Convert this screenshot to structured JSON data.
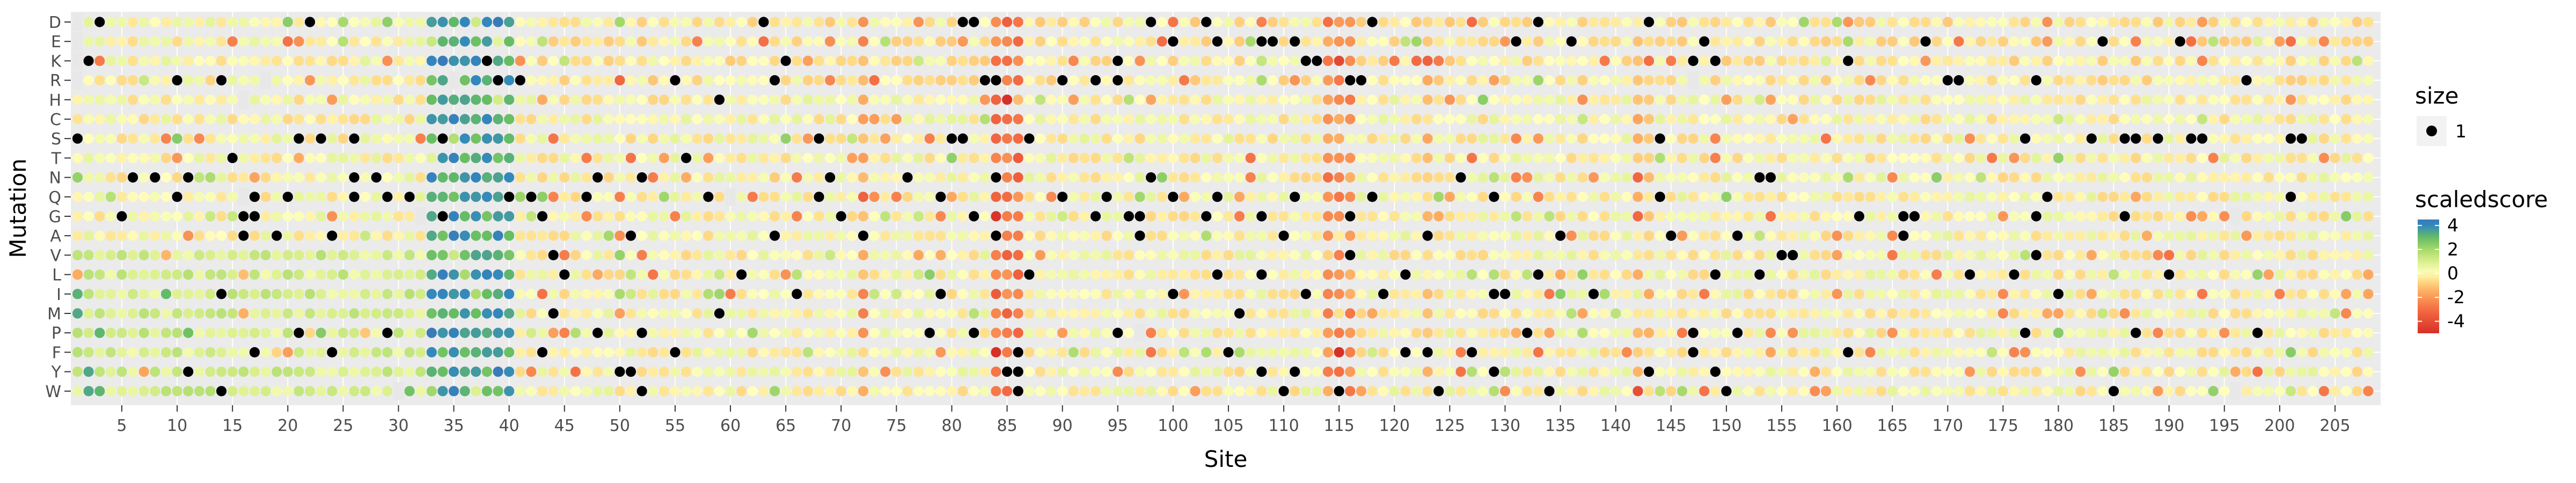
{
  "chart_data": {
    "type": "heatmap",
    "xlabel": "Site",
    "ylabel": "Mutation",
    "rows": [
      "D",
      "E",
      "K",
      "R",
      "H",
      "C",
      "S",
      "T",
      "N",
      "Q",
      "G",
      "A",
      "V",
      "L",
      "I",
      "M",
      "P",
      "F",
      "Y",
      "W"
    ],
    "xlim": [
      1,
      208
    ],
    "xticks": [
      5,
      10,
      15,
      20,
      25,
      30,
      35,
      40,
      45,
      50,
      55,
      60,
      65,
      70,
      75,
      80,
      85,
      90,
      95,
      100,
      105,
      110,
      115,
      120,
      125,
      130,
      135,
      140,
      145,
      150,
      155,
      160,
      165,
      170,
      175,
      180,
      185,
      190,
      195,
      200,
      205
    ],
    "color_scale": {
      "min": -5,
      "max": 4.5,
      "stops": [
        {
          "v": -5,
          "color": "#d73027"
        },
        {
          "v": -3,
          "color": "#f46d43"
        },
        {
          "v": -1.5,
          "color": "#fdae61"
        },
        {
          "v": -0.5,
          "color": "#fee08b"
        },
        {
          "v": 0,
          "color": "#ffffbf"
        },
        {
          "v": 1,
          "color": "#d9ef8b"
        },
        {
          "v": 2,
          "color": "#a6d96a"
        },
        {
          "v": 3,
          "color": "#66bd63"
        },
        {
          "v": 4,
          "color": "#3288bd"
        },
        {
          "v": 4.5,
          "color": "#3a7ab8"
        }
      ]
    },
    "wildtype_color": "#000000",
    "missing_color": "#e8e8e8",
    "wildtype": {
      "D": [
        3,
        22,
        63,
        81,
        82,
        98,
        103,
        118,
        133,
        143
      ],
      "E": [
        1,
        100,
        104,
        108,
        109,
        111,
        131,
        136,
        148,
        168,
        184,
        191
      ],
      "K": [
        2,
        38,
        65,
        95,
        112,
        113,
        147,
        149,
        161
      ],
      "R": [
        10,
        14,
        39,
        41,
        55,
        64,
        83,
        84,
        90,
        93,
        95,
        116,
        117,
        170,
        171,
        178,
        197
      ],
      "H": [
        59
      ],
      "C": [],
      "S": [
        1,
        21,
        23,
        26,
        34,
        68,
        80,
        81,
        87,
        144,
        177,
        183,
        186,
        187,
        189,
        192,
        193,
        201,
        202
      ],
      "T": [
        15,
        56
      ],
      "N": [
        6,
        8,
        11,
        26,
        28,
        48,
        52,
        69,
        76,
        84,
        98,
        126,
        153,
        154
      ],
      "Q": [
        10,
        16,
        17,
        20,
        26,
        29,
        31,
        40,
        42,
        47,
        58,
        68,
        79,
        90,
        94,
        100,
        104,
        111,
        118,
        129,
        144,
        179,
        201
      ],
      "G": [
        5,
        16,
        17,
        34,
        43,
        70,
        82,
        93,
        96,
        97,
        103,
        108,
        116,
        162,
        166,
        167,
        178,
        186
      ],
      "A": [
        16,
        19,
        24,
        51,
        64,
        72,
        84,
        97,
        110,
        123,
        135,
        145,
        151,
        166
      ],
      "V": [
        44,
        116,
        155,
        156,
        178
      ],
      "L": [
        45,
        61,
        87,
        104,
        108,
        121,
        133,
        149,
        153,
        172,
        176,
        190
      ],
      "I": [
        14,
        66,
        79,
        100,
        112,
        119,
        129,
        130,
        138,
        180
      ],
      "M": [
        44,
        59,
        106
      ],
      "P": [
        21,
        29,
        48,
        52,
        78,
        82,
        95,
        132,
        147,
        151,
        177,
        187,
        198
      ],
      "F": [
        17,
        24,
        43,
        55,
        86,
        105,
        121,
        123,
        127,
        147,
        161
      ],
      "Y": [
        11,
        50,
        51,
        85,
        86,
        108,
        111,
        129,
        143,
        149
      ],
      "W": [
        14,
        52,
        86,
        110,
        115,
        124,
        134,
        150,
        185
      ]
    },
    "missing": {
      "D": [
        1
      ],
      "E": [
        1
      ],
      "K": [
        1
      ],
      "R": [
        1,
        18,
        35,
        147
      ],
      "H": [
        16
      ],
      "Q": [
        16,
        60
      ],
      "G": [
        32,
        196
      ],
      "P": [
        97
      ],
      "W": [
        30,
        196
      ]
    },
    "hot_columns": [
      {
        "from": 33,
        "to": 40,
        "value": 3.5
      },
      {
        "from": 84,
        "to": 86,
        "value": -2.8
      },
      {
        "from": 114,
        "to": 116,
        "value": -2.2
      },
      {
        "from": 72,
        "to": 72,
        "value": -1.8
      },
      {
        "from": 123,
        "to": 123,
        "value": -1.2
      },
      {
        "from": 142,
        "to": 143,
        "value": -1.0
      }
    ],
    "legend": [
      {
        "title": "size",
        "entries": [
          {
            "label": "1"
          }
        ]
      },
      {
        "title": "scaledscore",
        "ticks": [
          4,
          2,
          0,
          -2,
          -4
        ]
      }
    ]
  }
}
